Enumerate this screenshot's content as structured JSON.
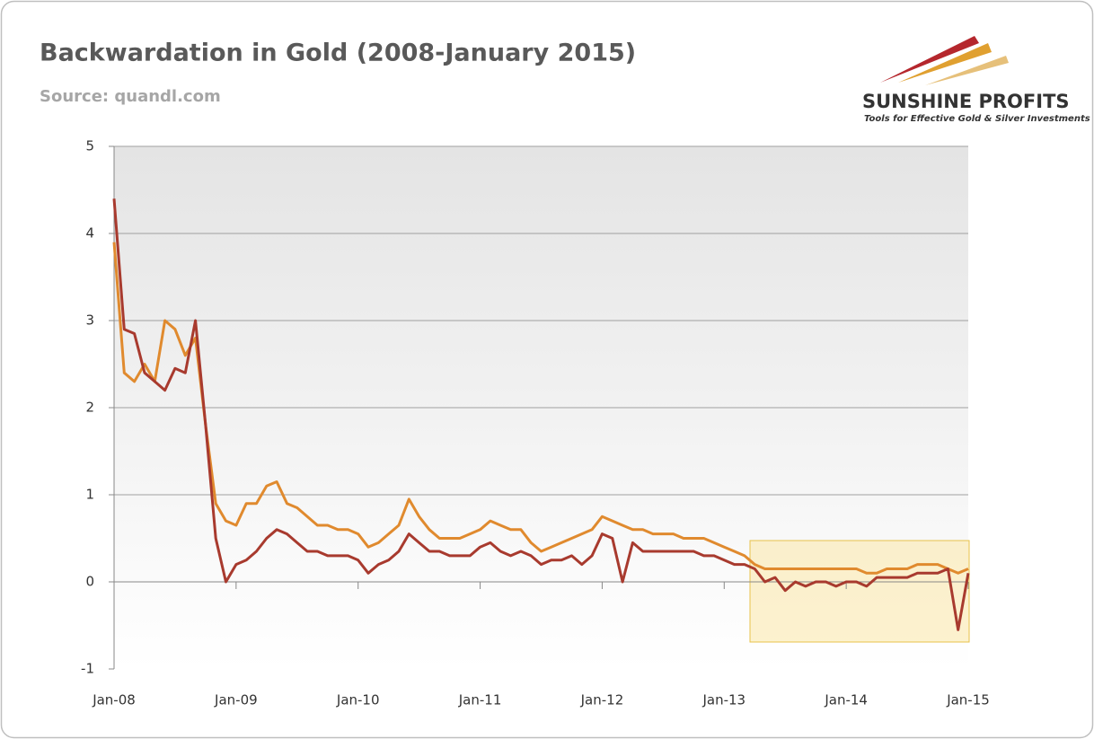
{
  "chart_data": {
    "type": "line",
    "title": "Backwardation in Gold (2008-January 2015)",
    "subtitle": "Source: quandl.com",
    "categories": [
      "Jan-08",
      null,
      null,
      null,
      null,
      null,
      null,
      null,
      null,
      null,
      null,
      null,
      "Jan-09",
      null,
      null,
      null,
      null,
      null,
      null,
      null,
      null,
      null,
      null,
      null,
      "Jan-10",
      null,
      null,
      null,
      null,
      null,
      null,
      null,
      null,
      null,
      null,
      null,
      "Jan-11",
      null,
      null,
      null,
      null,
      null,
      null,
      null,
      null,
      null,
      null,
      null,
      "Jan-12",
      null,
      null,
      null,
      null,
      null,
      null,
      null,
      null,
      null,
      null,
      null,
      "Jan-13",
      null,
      null,
      null,
      null,
      null,
      null,
      null,
      null,
      null,
      null,
      null,
      "Jan-14",
      null,
      null,
      null,
      null,
      null,
      null,
      null,
      null,
      null,
      null,
      null,
      "Jan-15"
    ],
    "series": [
      {
        "color": "#e08a2e",
        "values": [
          3.9,
          2.4,
          2.3,
          2.5,
          2.3,
          3.0,
          2.9,
          2.6,
          2.8,
          1.8,
          0.9,
          0.7,
          0.65,
          0.9,
          0.9,
          1.1,
          1.15,
          0.9,
          0.85,
          0.75,
          0.65,
          0.65,
          0.6,
          0.6,
          0.55,
          0.4,
          0.45,
          0.55,
          0.65,
          0.95,
          0.75,
          0.6,
          0.5,
          0.5,
          0.5,
          0.55,
          0.6,
          0.7,
          0.65,
          0.6,
          0.6,
          0.45,
          0.35,
          0.4,
          0.45,
          0.5,
          0.55,
          0.6,
          0.75,
          0.7,
          0.65,
          0.6,
          0.6,
          0.55,
          0.55,
          0.55,
          0.5,
          0.5,
          0.5,
          0.45,
          0.4,
          0.35,
          0.3,
          0.2,
          0.15,
          0.15,
          0.15,
          0.15,
          0.15,
          0.15,
          0.15,
          0.15,
          0.15,
          0.15,
          0.1,
          0.1,
          0.15,
          0.15,
          0.15,
          0.2,
          0.2,
          0.2,
          0.15,
          0.1,
          0.15
        ]
      },
      {
        "color": "#a83a2e",
        "values": [
          4.4,
          2.9,
          2.85,
          2.4,
          2.3,
          2.2,
          2.45,
          2.4,
          3.0,
          1.8,
          0.5,
          0.0,
          0.2,
          0.25,
          0.35,
          0.5,
          0.6,
          0.55,
          0.45,
          0.35,
          0.35,
          0.3,
          0.3,
          0.3,
          0.25,
          0.1,
          0.2,
          0.25,
          0.35,
          0.55,
          0.45,
          0.35,
          0.35,
          0.3,
          0.3,
          0.3,
          0.4,
          0.45,
          0.35,
          0.3,
          0.35,
          0.3,
          0.2,
          0.25,
          0.25,
          0.3,
          0.2,
          0.3,
          0.55,
          0.5,
          0.0,
          0.45,
          0.35,
          0.35,
          0.35,
          0.35,
          0.35,
          0.35,
          0.3,
          0.3,
          0.25,
          0.2,
          0.2,
          0.15,
          0.0,
          0.05,
          -0.1,
          0.0,
          -0.05,
          0.0,
          0.0,
          -0.05,
          0.0,
          0.0,
          -0.05,
          0.05,
          0.05,
          0.05,
          0.05,
          0.1,
          0.1,
          0.1,
          0.15,
          -0.55,
          0.1
        ]
      }
    ],
    "ylim": [
      -1,
      5
    ],
    "yticks": [
      -1,
      0,
      1,
      2,
      3,
      4,
      5
    ],
    "grid": true
  },
  "logo": {
    "name": "SUNSHINE PROFITS",
    "tagline": "Tools for Effective Gold & Silver Investments"
  }
}
